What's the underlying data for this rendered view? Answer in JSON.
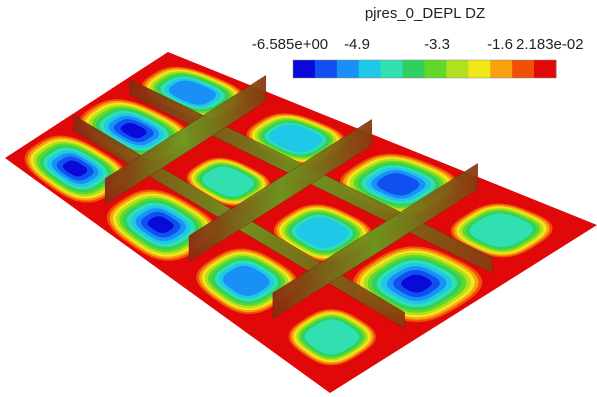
{
  "legend": {
    "title": "pjres_0_DEPL DZ",
    "labels": [
      "-6.585e+00",
      "-4.9",
      "-3.3",
      "-1.6",
      "2.183e-02"
    ]
  }
}
